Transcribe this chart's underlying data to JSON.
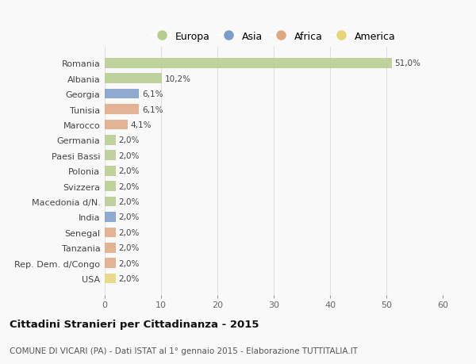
{
  "countries": [
    "Romania",
    "Albania",
    "Georgia",
    "Tunisia",
    "Marocco",
    "Germania",
    "Paesi Bassi",
    "Polonia",
    "Svizzera",
    "Macedonia d/N.",
    "India",
    "Senegal",
    "Tanzania",
    "Rep. Dem. d/Congo",
    "USA"
  ],
  "values": [
    51.0,
    10.2,
    6.1,
    6.1,
    4.1,
    2.0,
    2.0,
    2.0,
    2.0,
    2.0,
    2.0,
    2.0,
    2.0,
    2.0,
    2.0
  ],
  "labels": [
    "51,0%",
    "10,2%",
    "6,1%",
    "6,1%",
    "4,1%",
    "2,0%",
    "2,0%",
    "2,0%",
    "2,0%",
    "2,0%",
    "2,0%",
    "2,0%",
    "2,0%",
    "2,0%",
    "2,0%"
  ],
  "continents": [
    "Europa",
    "Europa",
    "Asia",
    "Africa",
    "Africa",
    "Europa",
    "Europa",
    "Europa",
    "Europa",
    "Europa",
    "Asia",
    "Africa",
    "Africa",
    "Africa",
    "America"
  ],
  "continent_colors": {
    "Europa": "#b5cc8e",
    "Asia": "#7b9ec8",
    "Africa": "#e0a882",
    "America": "#e8d478"
  },
  "legend_order": [
    "Europa",
    "Asia",
    "Africa",
    "America"
  ],
  "title": "Cittadini Stranieri per Cittadinanza - 2015",
  "subtitle": "COMUNE DI VICARI (PA) - Dati ISTAT al 1° gennaio 2015 - Elaborazione TUTTITALIA.IT",
  "xlim": [
    0,
    60
  ],
  "xticks": [
    0,
    10,
    20,
    30,
    40,
    50,
    60
  ],
  "background_color": "#f9f9f9",
  "grid_color": "#e0e0e0",
  "bar_height": 0.65
}
